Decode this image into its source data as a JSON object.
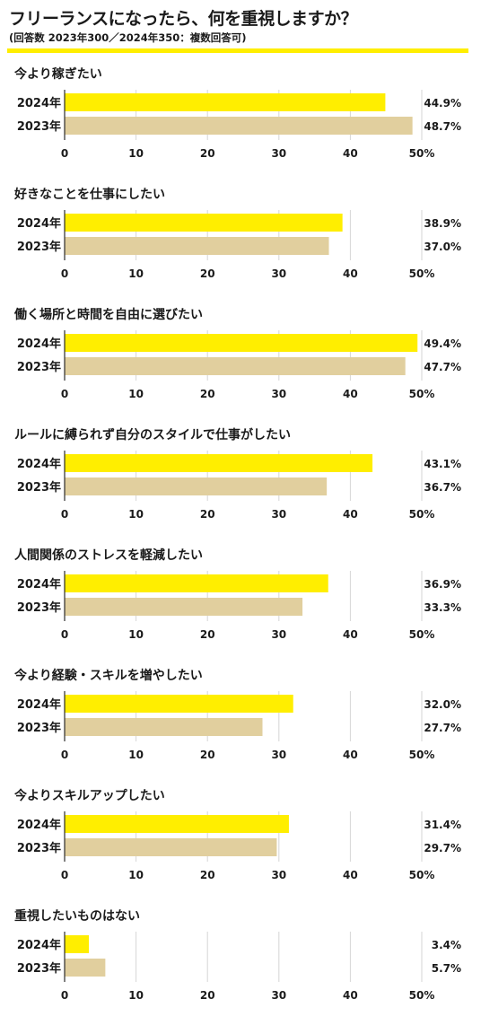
{
  "header": {
    "title": "フリーランスになったら、何を重視しますか？",
    "subtitle": "(回答数 2023年300／2024年350：複数回答可)"
  },
  "colors": {
    "series_2024": "#ffee00",
    "series_2023": "#e1cf9e",
    "grid": "#d6d6d6",
    "axis": "#2a2a2a",
    "rule": "#ffee00"
  },
  "chart_data": [
    {
      "type": "bar",
      "orientation": "horizontal",
      "title": "今より稼ぎたい",
      "categories": [
        "2024年",
        "2023年"
      ],
      "values": [
        44.9,
        48.7
      ],
      "value_labels": [
        "44.9%",
        "48.7%"
      ],
      "xlim": [
        0,
        50
      ],
      "x_ticks": [
        "0",
        "10",
        "20",
        "30",
        "40",
        "50%"
      ],
      "grid": true
    },
    {
      "type": "bar",
      "orientation": "horizontal",
      "title": "好きなことを仕事にしたい",
      "categories": [
        "2024年",
        "2023年"
      ],
      "values": [
        38.9,
        37.0
      ],
      "value_labels": [
        "38.9%",
        "37.0%"
      ],
      "xlim": [
        0,
        50
      ],
      "x_ticks": [
        "0",
        "10",
        "20",
        "30",
        "40",
        "50%"
      ],
      "grid": true
    },
    {
      "type": "bar",
      "orientation": "horizontal",
      "title": "働く場所と時間を自由に選びたい",
      "categories": [
        "2024年",
        "2023年"
      ],
      "values": [
        49.4,
        47.7
      ],
      "value_labels": [
        "49.4%",
        "47.7%"
      ],
      "xlim": [
        0,
        50
      ],
      "x_ticks": [
        "0",
        "10",
        "20",
        "30",
        "40",
        "50%"
      ],
      "grid": true
    },
    {
      "type": "bar",
      "orientation": "horizontal",
      "title": "ルールに縛られず自分のスタイルで仕事がしたい",
      "categories": [
        "2024年",
        "2023年"
      ],
      "values": [
        43.1,
        36.7
      ],
      "value_labels": [
        "43.1%",
        "36.7%"
      ],
      "xlim": [
        0,
        50
      ],
      "x_ticks": [
        "0",
        "10",
        "20",
        "30",
        "40",
        "50%"
      ],
      "grid": true
    },
    {
      "type": "bar",
      "orientation": "horizontal",
      "title": "人間関係のストレスを軽減したい",
      "categories": [
        "2024年",
        "2023年"
      ],
      "values": [
        36.9,
        33.3
      ],
      "value_labels": [
        "36.9%",
        "33.3%"
      ],
      "xlim": [
        0,
        50
      ],
      "x_ticks": [
        "0",
        "10",
        "20",
        "30",
        "40",
        "50%"
      ],
      "grid": true
    },
    {
      "type": "bar",
      "orientation": "horizontal",
      "title": "今より経験・スキルを増やしたい",
      "categories": [
        "2024年",
        "2023年"
      ],
      "values": [
        32.0,
        27.7
      ],
      "value_labels": [
        "32.0%",
        "27.7%"
      ],
      "xlim": [
        0,
        50
      ],
      "x_ticks": [
        "0",
        "10",
        "20",
        "30",
        "40",
        "50%"
      ],
      "grid": true
    },
    {
      "type": "bar",
      "orientation": "horizontal",
      "title": "今よりスキルアップしたい",
      "categories": [
        "2024年",
        "2023年"
      ],
      "values": [
        31.4,
        29.7
      ],
      "value_labels": [
        "31.4%",
        "29.7%"
      ],
      "xlim": [
        0,
        50
      ],
      "x_ticks": [
        "0",
        "10",
        "20",
        "30",
        "40",
        "50%"
      ],
      "grid": true
    },
    {
      "type": "bar",
      "orientation": "horizontal",
      "title": "重視したいものはない",
      "categories": [
        "2024年",
        "2023年"
      ],
      "values": [
        3.4,
        5.7
      ],
      "value_labels": [
        "3.4%",
        "5.7%"
      ],
      "xlim": [
        0,
        50
      ],
      "x_ticks": [
        "0",
        "10",
        "20",
        "30",
        "40",
        "50%"
      ],
      "grid": true
    }
  ]
}
